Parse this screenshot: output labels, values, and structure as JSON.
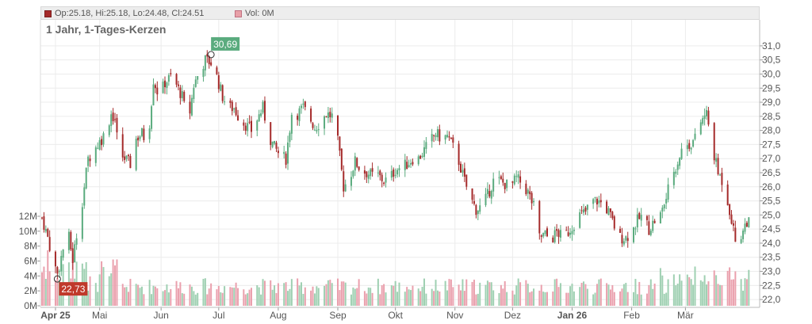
{
  "legend": {
    "ohlc": "Op:25.18, Hi:25.18, Lo:24.48, Cl:24.51",
    "ohlc_color": "#a52a2a",
    "volume": "Vol: 0M",
    "volume_color": "#e8a0a8"
  },
  "title": "1 Jahr, 1-Tages-Kerzen",
  "chart_data": {
    "type": "candlestick",
    "title": "1 Jahr, 1-Tages-Kerzen",
    "colors": {
      "up": "#5aab7e",
      "down": "#a52a2a",
      "volume_up": "#9fd0b2",
      "volume_down": "#eaa0ad"
    },
    "price_axis": {
      "ticks": [
        "31,0",
        "30,5",
        "30,0",
        "29,5",
        "29,0",
        "28,5",
        "28,0",
        "27,5",
        "27,0",
        "26,5",
        "26,0",
        "25,5",
        "25,0",
        "24,5",
        "24,0",
        "23,5",
        "23,0",
        "22,5",
        "22,0"
      ],
      "ylim": [
        21.75,
        31.25
      ]
    },
    "volume_axis": {
      "ticks": [
        "12M",
        "10M",
        "8M",
        "6M",
        "4M",
        "2M",
        "0M"
      ],
      "ylim": [
        0,
        12
      ]
    },
    "x_ticks": [
      {
        "label": "Apr 25",
        "bold": true,
        "day": 7
      },
      {
        "label": "Mai",
        "bold": false,
        "day": 30
      },
      {
        "label": "Jun",
        "bold": false,
        "day": 62
      },
      {
        "label": "Jul",
        "bold": false,
        "day": 92
      },
      {
        "label": "Aug",
        "bold": false,
        "day": 123
      },
      {
        "label": "Sep",
        "bold": false,
        "day": 154
      },
      {
        "label": "Okt",
        "bold": false,
        "day": 184
      },
      {
        "label": "Nov",
        "bold": false,
        "day": 215
      },
      {
        "label": "Dez",
        "bold": false,
        "day": 245
      },
      {
        "label": "Jan 26",
        "bold": true,
        "day": 276
      },
      {
        "label": "Feb",
        "bold": false,
        "day": 307
      },
      {
        "label": "Mär",
        "bold": false,
        "day": 335
      }
    ],
    "annotations": [
      {
        "label": "30,69",
        "value": 30.69,
        "day": 88,
        "kind": "high",
        "color": "#5aab7e"
      },
      {
        "label": "22,73",
        "value": 22.73,
        "day": 8,
        "kind": "low",
        "color": "#c0392b"
      }
    ],
    "close_series": [
      [
        0,
        24.9
      ],
      [
        3,
        24.2
      ],
      [
        6,
        23.3
      ],
      [
        8,
        22.9
      ],
      [
        11,
        23.8
      ],
      [
        14,
        24.2
      ],
      [
        16,
        23.4
      ],
      [
        18,
        24.3
      ],
      [
        21,
        25.5
      ],
      [
        24,
        27.0
      ],
      [
        27,
        27.3
      ],
      [
        30,
        27.6
      ],
      [
        33,
        27.9
      ],
      [
        36,
        28.6
      ],
      [
        38,
        28.4
      ],
      [
        40,
        27.2
      ],
      [
        43,
        27.0
      ],
      [
        46,
        26.8
      ],
      [
        49,
        27.7
      ],
      [
        52,
        27.9
      ],
      [
        55,
        27.5
      ],
      [
        58,
        29.8
      ],
      [
        61,
        29.2
      ],
      [
        64,
        29.7
      ],
      [
        67,
        29.9
      ],
      [
        70,
        29.6
      ],
      [
        73,
        29.2
      ],
      [
        76,
        28.2
      ],
      [
        79,
        29.6
      ],
      [
        82,
        30.1
      ],
      [
        85,
        30.5
      ],
      [
        88,
        30.4
      ],
      [
        91,
        29.9
      ],
      [
        94,
        29.2
      ],
      [
        97,
        28.8
      ],
      [
        100,
        28.8
      ],
      [
        103,
        28.4
      ],
      [
        106,
        28.2
      ],
      [
        109,
        28.0
      ],
      [
        112,
        28.4
      ],
      [
        115,
        28.8
      ],
      [
        118,
        27.8
      ],
      [
        121,
        27.4
      ],
      [
        124,
        27.1
      ],
      [
        127,
        27.0
      ],
      [
        130,
        28.6
      ],
      [
        133,
        28.6
      ],
      [
        136,
        28.8
      ],
      [
        139,
        28.5
      ],
      [
        142,
        28.1
      ],
      [
        145,
        28.3
      ],
      [
        148,
        28.6
      ],
      [
        151,
        28.5
      ],
      [
        154,
        27.6
      ],
      [
        157,
        26.0
      ],
      [
        160,
        26.3
      ],
      [
        163,
        26.9
      ],
      [
        166,
        26.6
      ],
      [
        169,
        26.5
      ],
      [
        172,
        26.4
      ],
      [
        175,
        26.4
      ],
      [
        178,
        26.2
      ],
      [
        181,
        26.3
      ],
      [
        184,
        26.6
      ],
      [
        187,
        26.7
      ],
      [
        190,
        26.8
      ],
      [
        193,
        27.0
      ],
      [
        196,
        27.0
      ],
      [
        199,
        27.3
      ],
      [
        202,
        27.6
      ],
      [
        205,
        27.9
      ],
      [
        208,
        27.7
      ],
      [
        211,
        27.8
      ],
      [
        214,
        27.4
      ],
      [
        217,
        26.9
      ],
      [
        220,
        26.2
      ],
      [
        223,
        25.6
      ],
      [
        226,
        25.2
      ],
      [
        229,
        25.3
      ],
      [
        232,
        25.7
      ],
      [
        235,
        26.2
      ],
      [
        238,
        26.2
      ],
      [
        241,
        26.1
      ],
      [
        244,
        26.0
      ],
      [
        247,
        26.3
      ],
      [
        250,
        26.1
      ],
      [
        253,
        25.8
      ],
      [
        256,
        25.3
      ],
      [
        259,
        24.2
      ],
      [
        262,
        24.3
      ],
      [
        265,
        24.1
      ],
      [
        268,
        24.4
      ],
      [
        271,
        24.2
      ],
      [
        274,
        24.4
      ],
      [
        277,
        24.7
      ],
      [
        280,
        25.0
      ],
      [
        283,
        25.1
      ],
      [
        286,
        25.5
      ],
      [
        289,
        25.5
      ],
      [
        292,
        25.4
      ],
      [
        295,
        25.1
      ],
      [
        298,
        24.6
      ],
      [
        301,
        24.2
      ],
      [
        304,
        24.2
      ],
      [
        307,
        24.4
      ],
      [
        310,
        24.8
      ],
      [
        313,
        25.0
      ],
      [
        316,
        24.5
      ],
      [
        319,
        24.8
      ],
      [
        322,
        25.0
      ],
      [
        325,
        25.6
      ],
      [
        328,
        26.4
      ],
      [
        331,
        26.9
      ],
      [
        334,
        27.5
      ],
      [
        337,
        27.5
      ],
      [
        340,
        27.7
      ],
      [
        343,
        28.3
      ],
      [
        346,
        28.6
      ],
      [
        349,
        27.4
      ],
      [
        352,
        26.5
      ],
      [
        355,
        26.1
      ],
      [
        358,
        25.2
      ],
      [
        361,
        24.1
      ],
      [
        364,
        24.3
      ],
      [
        367,
        24.8
      ],
      [
        370,
        24.51
      ]
    ]
  }
}
